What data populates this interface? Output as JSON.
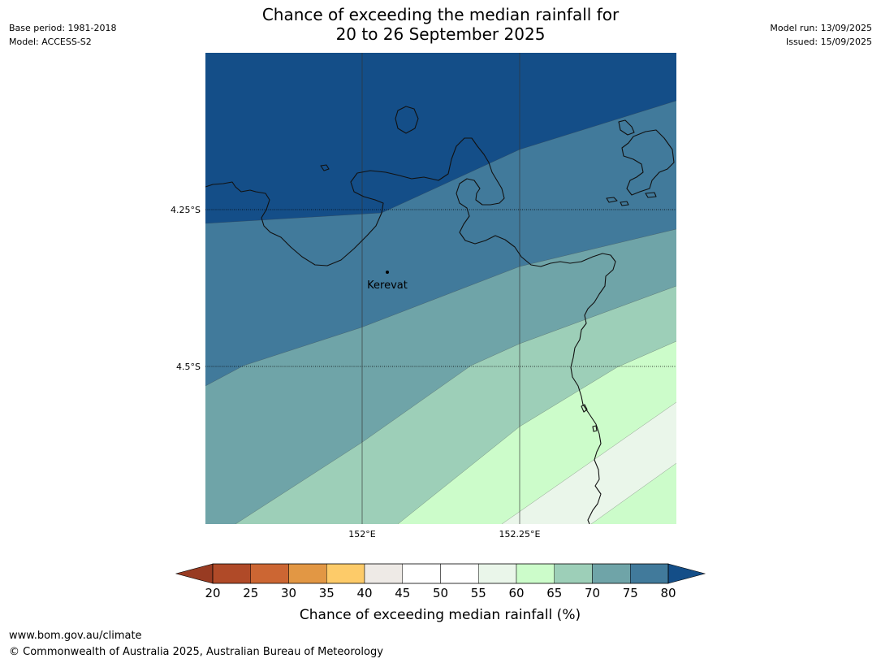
{
  "header": {
    "title_line1": "Chance of exceeding the median rainfall for",
    "title_line2": "20 to 26 September 2025",
    "base_period": "Base period: 1981-2018",
    "model": "Model: ACCESS-S2",
    "model_run": "Model run: 13/09/2025",
    "issued": "Issued: 15/09/2025"
  },
  "map": {
    "lat_labels": [
      "4.25°S",
      "4.5°S"
    ],
    "lon_labels": [
      "152°E",
      "152.25°E"
    ],
    "place": "Kerevat",
    "band_colors": [
      "#144e88",
      "#417a9b",
      "#6fa4a8",
      "#9dcfb8",
      "#ccfcca",
      "#eaf6ea"
    ]
  },
  "colorbar": {
    "label": "Chance of exceeding median rainfall (%)",
    "ticks": [
      "20",
      "25",
      "30",
      "35",
      "40",
      "45",
      "50",
      "55",
      "60",
      "65",
      "70",
      "75",
      "80"
    ],
    "colors": [
      "#b04a28",
      "#cc6633",
      "#e29744",
      "#fdcb69",
      "#eeeae6",
      "#ffffff",
      "#ffffff",
      "#eaf6ea",
      "#ccfcca",
      "#9dcfb8",
      "#6fa4a8",
      "#417a9b"
    ],
    "under_color": "#983b22",
    "over_color": "#144e88"
  },
  "footer": {
    "url": "www.bom.gov.au/climate",
    "copyright": "© Commonwealth of Australia 2025, Australian Bureau of Meteorology"
  }
}
